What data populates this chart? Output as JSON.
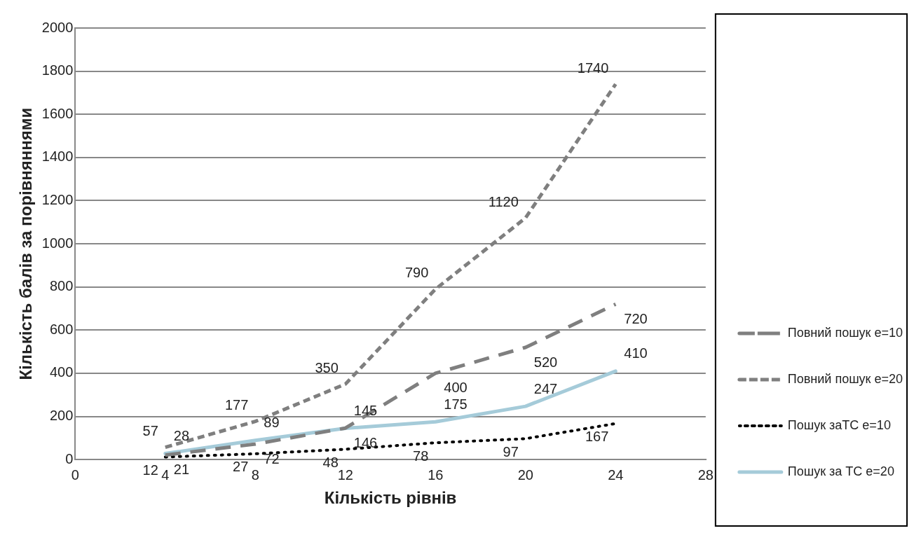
{
  "chart_data": {
    "type": "line",
    "xlabel": "Кількість рівнів",
    "ylabel": "Кількість балів за порівняннями",
    "x": [
      4,
      8,
      12,
      16,
      20,
      24
    ],
    "xlim": [
      0,
      28
    ],
    "xticks": [
      0,
      4,
      8,
      12,
      16,
      20,
      24,
      28
    ],
    "ylim": [
      0,
      2000
    ],
    "yticks": [
      0,
      200,
      400,
      600,
      800,
      1000,
      1200,
      1400,
      1600,
      1800,
      2000
    ],
    "grid": "y",
    "legend": "right",
    "data_labels": true,
    "marker": "none",
    "series": [
      {
        "name": "Повний пошук е=10",
        "color": "#7f7f7f",
        "line_style": "dashed",
        "values": [
          21,
          72,
          146,
          400,
          520,
          720
        ]
      },
      {
        "name": "Повний пошук е=20",
        "color": "#7f7f7f",
        "line_style": "dashed",
        "values": [
          57,
          177,
          350,
          790,
          1120,
          1740
        ]
      },
      {
        "name": "Пошук заТС е=10",
        "color": "#000000",
        "line_style": "dotted",
        "values": [
          12,
          27,
          48,
          78,
          97,
          167
        ]
      },
      {
        "name": "Пошук за ТС е=20",
        "color": "#a5cbd9",
        "line_style": "solid",
        "values": [
          28,
          89,
          145,
          175,
          247,
          410
        ]
      }
    ]
  }
}
